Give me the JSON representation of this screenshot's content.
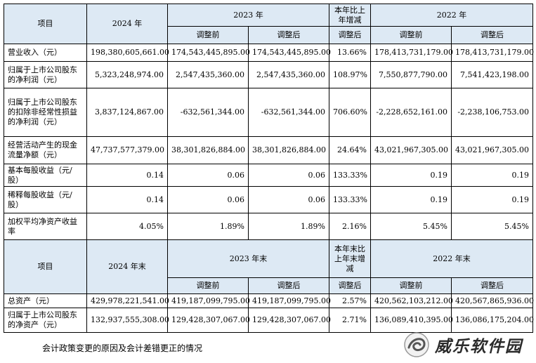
{
  "headers1": {
    "item": "项目",
    "y2024": "2024 年",
    "y2023": "2023 年",
    "change": "本年比上年增减",
    "y2022": "2022 年",
    "before": "调整前",
    "after": "调整后",
    "after_change": "调整后"
  },
  "rows1": [
    {
      "label": "营业收入（元）",
      "v2024": "198,380,605,661.00",
      "b2023": "174,543,445,895.00",
      "a2023": "174,543,445,895.00",
      "chg": "13.66%",
      "b2022": "178,413,731,179.00",
      "a2022": "178,413,731,179.00"
    },
    {
      "label": "归属于上市公司股东的净利润（元）",
      "v2024": "5,323,248,974.00",
      "b2023": "2,547,435,360.00",
      "a2023": "2,547,435,360.00",
      "chg": "108.97%",
      "b2022": "7,550,877,790.00",
      "a2022": "7,541,423,198.00"
    },
    {
      "label": "归属于上市公司股东的扣除非经常性损益的净利润（元）",
      "v2024": "3,837,124,867.00",
      "b2023": "-632,561,344.00",
      "a2023": "-632,561,344.00",
      "chg": "706.60%",
      "b2022": "-2,228,652,161.00",
      "a2022": "-2,238,106,753.00"
    },
    {
      "label": "经营活动产生的现金流量净额（元）",
      "v2024": "47,737,577,379.00",
      "b2023": "38,301,826,884.00",
      "a2023": "38,301,826,884.00",
      "chg": "24.64%",
      "b2022": "43,021,967,305.00",
      "a2022": "43,021,967,305.00"
    },
    {
      "label": "基本每股收益（元/股）",
      "v2024": "0.14",
      "b2023": "0.06",
      "a2023": "0.06",
      "chg": "133.33%",
      "b2022": "0.19",
      "a2022": "0.19"
    },
    {
      "label": "稀释每股收益（元/股）",
      "v2024": "0.14",
      "b2023": "0.06",
      "a2023": "0.06",
      "chg": "133.33%",
      "b2022": "0.19",
      "a2022": "0.19"
    },
    {
      "label": "加权平均净资产收益率",
      "v2024": "4.05%",
      "b2023": "1.89%",
      "a2023": "1.89%",
      "chg": "2.16%",
      "b2022": "5.45%",
      "a2022": "5.45%"
    }
  ],
  "headers2": {
    "item": "项目",
    "y2024": "2024 年末",
    "y2023": "2023 年末",
    "change": "本年末比上年末增减",
    "y2022": "2022 年末",
    "before": "调整前",
    "after": "调整后",
    "after_change": "调整后"
  },
  "rows2": [
    {
      "label": "总资产（元）",
      "v2024": "429,978,221,541.00",
      "b2023": "419,187,099,795.00",
      "a2023": "419,187,099,795.00",
      "chg": "2.57%",
      "b2022": "420,562,103,212.00",
      "a2022": "420,567,865,936.00"
    },
    {
      "label": "归属于上市公司股东的净资产（元）",
      "v2024": "132,937,555,308.00",
      "b2023": "129,428,307,067.00",
      "a2023": "129,428,307,067.00",
      "chg": "2.71%",
      "b2022": "136,089,410,395.00",
      "a2022": "136,086,175,204.00"
    }
  ],
  "footnote": "会计政策变更的原因及会计差错更正的情况",
  "watermark": {
    "text": "威乐软件园",
    "logo_icon": "swirl-logo-icon"
  }
}
